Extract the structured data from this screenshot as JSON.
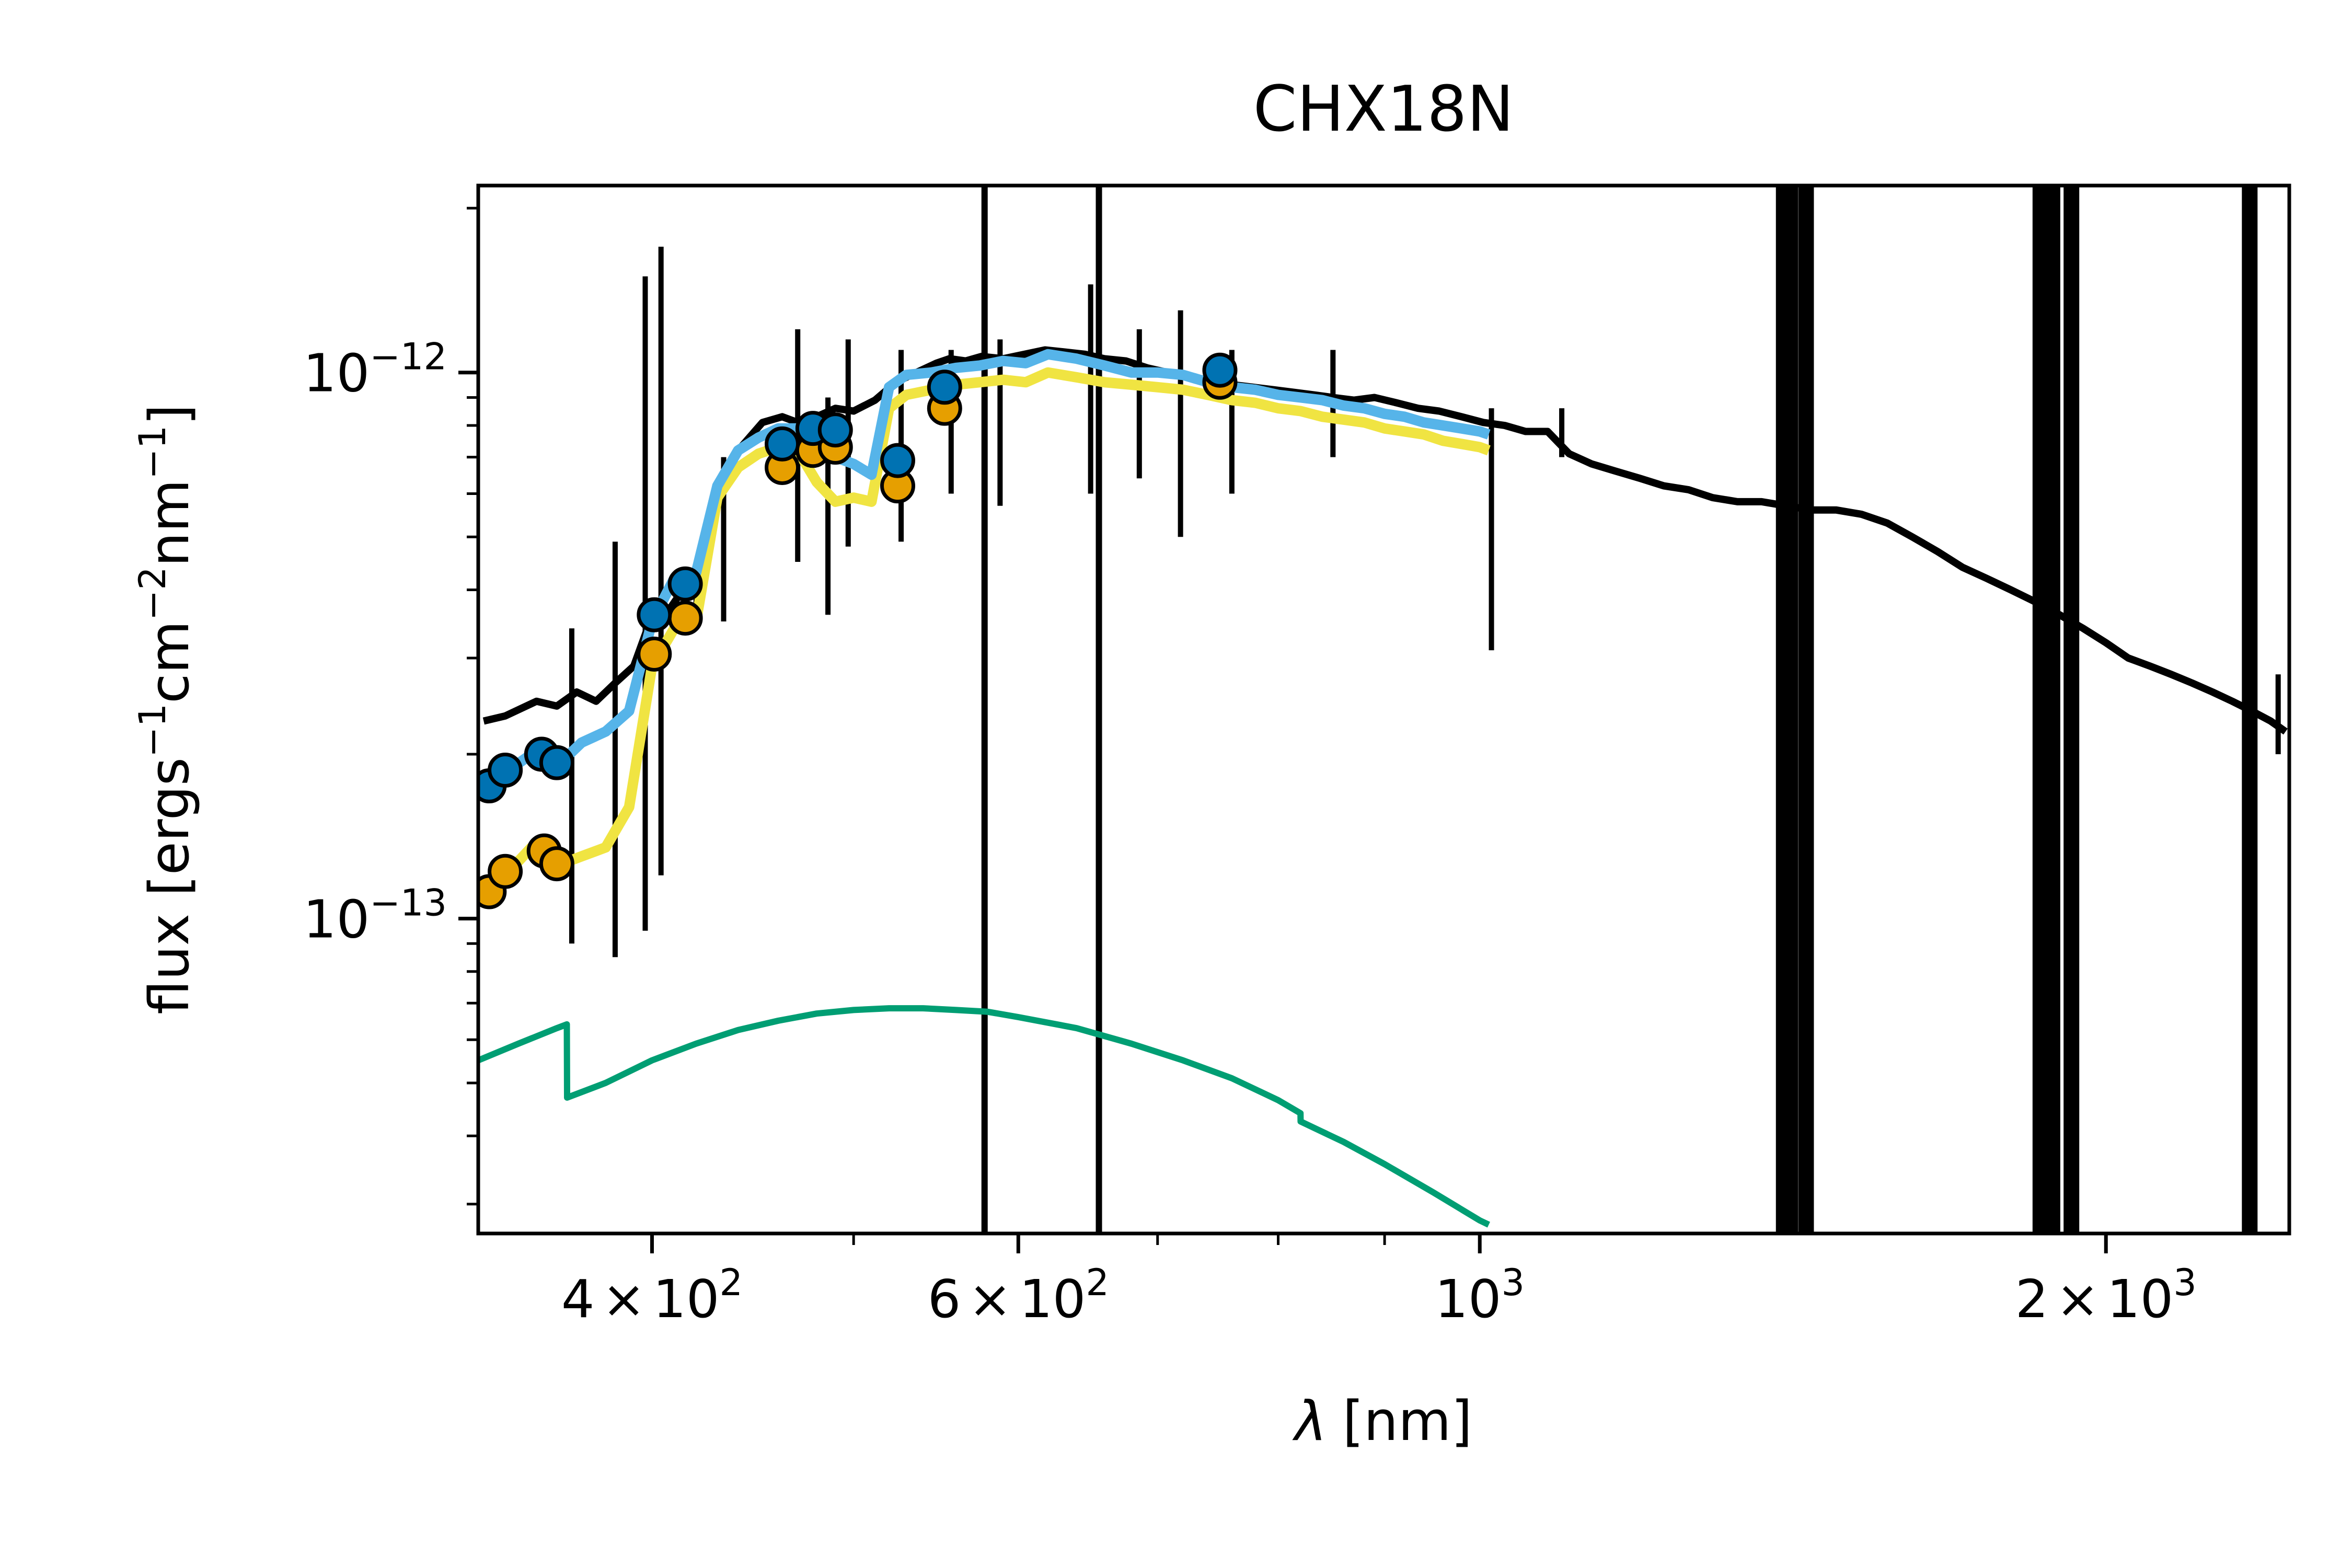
{
  "chart_data": {
    "type": "line",
    "title": "CHX18N",
    "xlabel": {
      "symbol": "λ",
      "unit": "[nm]"
    },
    "ylabel": {
      "prefix": "flux [ergs",
      "exp1": "−1",
      "mid1": "cm",
      "exp2": "−2",
      "mid2": "nm",
      "exp3": "−1",
      "suffix": "]"
    },
    "xscale": "log",
    "yscale": "log",
    "xlim": [
      330,
      2450
    ],
    "ylim": [
      2.65e-14,
      2.2e-12
    ],
    "x_ticks": [
      {
        "value": 400,
        "mantissa": "4",
        "times": "×",
        "base": "10",
        "exp": "2"
      },
      {
        "value": 600,
        "mantissa": "6",
        "times": "×",
        "base": "10",
        "exp": "2"
      },
      {
        "value": 1000,
        "mantissa": "",
        "times": "",
        "base": "10",
        "exp": "3"
      },
      {
        "value": 2000,
        "mantissa": "2",
        "times": "×",
        "base": "10",
        "exp": "3"
      }
    ],
    "y_ticks": [
      {
        "value": 1e-12,
        "base": "10",
        "exp": "−12"
      },
      {
        "value": 1e-13,
        "base": "10",
        "exp": "−13"
      }
    ],
    "colors": {
      "observed": "#000000",
      "model_blue": "#56b4e9",
      "model_yellow": "#f0e442",
      "blackbody": "#009e73",
      "phot_blue": "#0072b2",
      "phot_orange": "#e69f00"
    },
    "series": [
      {
        "id": "observed-spectrum",
        "x": [
          332,
          340,
          352,
          360,
          368,
          376,
          384,
          392,
          398,
          404,
          412,
          420,
          430,
          440,
          452,
          462,
          470,
          480,
          490,
          500,
          512,
          524,
          536,
          548,
          556,
          566,
          576,
          590,
          604,
          618,
          632,
          646,
          660,
          676,
          692,
          708,
          724,
          742,
          760,
          778,
          796,
          814,
          832,
          850,
          870,
          890,
          912,
          934,
          956,
          980,
          1004,
          1028,
          1052,
          1078,
          1104,
          1132,
          1162,
          1194,
          1226,
          1260,
          1294,
          1330,
          1366,
          1404,
          1444,
          1484,
          1526,
          1570,
          1614,
          1660,
          1706,
          1752,
          1800,
          1850,
          1900,
          1950,
          2000,
          2050,
          2100,
          2150,
          2200,
          2250,
          2300,
          2350,
          2400,
          2440
        ],
        "y": [
          2.3e-13,
          2.35e-13,
          2.5e-13,
          2.45e-13,
          2.6e-13,
          2.5e-13,
          2.7e-13,
          2.9e-13,
          3.4e-13,
          3.5e-13,
          3.9e-13,
          4.2e-13,
          6e-13,
          7.2e-13,
          8.1e-13,
          8.3e-13,
          8.1e-13,
          8.3e-13,
          8.6e-13,
          8.5e-13,
          8.9e-13,
          9.6e-13,
          1e-12,
          1.04e-12,
          1.06e-12,
          1.05e-12,
          1.07e-12,
          1.06e-12,
          1.08e-12,
          1.1e-12,
          1.09e-12,
          1.08e-12,
          1.06e-12,
          1.05e-12,
          1.02e-12,
          1e-12,
          9.8e-13,
          9.7e-13,
          9.5e-13,
          9.4e-13,
          9.3e-13,
          9.2e-13,
          9.1e-13,
          9e-13,
          8.9e-13,
          9e-13,
          8.8e-13,
          8.6e-13,
          8.5e-13,
          8.3e-13,
          8.1e-13,
          8e-13,
          7.8e-13,
          7.8e-13,
          7.1e-13,
          6.8e-13,
          6.6e-13,
          6.4e-13,
          6.2e-13,
          6.1e-13,
          5.9e-13,
          5.8e-13,
          5.8e-13,
          5.7e-13,
          5.6e-13,
          5.6e-13,
          5.5e-13,
          5.3e-13,
          5e-13,
          4.7e-13,
          4.4e-13,
          4.2e-13,
          4e-13,
          3.8e-13,
          3.6e-13,
          3.4e-13,
          3.2e-13,
          3e-13,
          2.9e-13,
          2.8e-13,
          2.7e-13,
          2.6e-13,
          2.5e-13,
          2.4e-13,
          2.3e-13,
          2.2e-13
        ]
      },
      {
        "id": "model-spectrum-blue",
        "x": [
          332,
          340,
          350,
          360,
          370,
          380,
          390,
          400,
          410,
          420,
          430,
          440,
          450,
          460,
          470,
          480,
          490,
          500,
          510,
          520,
          530,
          545,
          560,
          575,
          590,
          605,
          620,
          640,
          660,
          680,
          700,
          720,
          740,
          760,
          780,
          800,
          820,
          840,
          860,
          880,
          900,
          920,
          940,
          960,
          980,
          1000,
          1010
        ],
        "y": [
          1.75e-13,
          1.85e-13,
          2e-13,
          1.9e-13,
          2.1e-13,
          2.2e-13,
          2.4e-13,
          3.5e-13,
          4.2e-13,
          4.3e-13,
          6.2e-13,
          7.2e-13,
          7.6e-13,
          7.9e-13,
          7.9e-13,
          7.2e-13,
          7e-13,
          6.8e-13,
          6.5e-13,
          9.4e-13,
          9.9e-13,
          1e-12,
          1.02e-12,
          1.03e-12,
          1.05e-12,
          1.04e-12,
          1.08e-12,
          1.06e-12,
          1.03e-12,
          1e-12,
          1e-12,
          9.9e-13,
          9.6e-13,
          9.4e-13,
          9.3e-13,
          9.1e-13,
          9e-13,
          8.9e-13,
          8.7e-13,
          8.6e-13,
          8.4e-13,
          8.3e-13,
          8.1e-13,
          8e-13,
          7.9e-13,
          7.8e-13,
          7.7e-13
        ]
      },
      {
        "id": "model-spectrum-yellow",
        "x": [
          332,
          340,
          350,
          360,
          370,
          380,
          390,
          400,
          410,
          420,
          430,
          440,
          450,
          460,
          470,
          480,
          490,
          500,
          510,
          520,
          530,
          545,
          560,
          575,
          590,
          605,
          620,
          640,
          660,
          680,
          700,
          720,
          740,
          760,
          780,
          800,
          820,
          840,
          860,
          880,
          900,
          920,
          940,
          960,
          980,
          1000,
          1010
        ],
        "y": [
          1.1e-13,
          1.2e-13,
          1.35e-13,
          1.25e-13,
          1.3e-13,
          1.35e-13,
          1.6e-13,
          2.9e-13,
          3.4e-13,
          3.5e-13,
          5.9e-13,
          6.7e-13,
          7.1e-13,
          7.3e-13,
          7.2e-13,
          6.3e-13,
          5.8e-13,
          5.9e-13,
          5.8e-13,
          8.6e-13,
          9.1e-13,
          9.3e-13,
          9.5e-13,
          9.6e-13,
          9.7e-13,
          9.6e-13,
          1e-12,
          9.8e-13,
          9.6e-13,
          9.5e-13,
          9.4e-13,
          9.3e-13,
          9.1e-13,
          8.9e-13,
          8.8e-13,
          8.6e-13,
          8.5e-13,
          8.3e-13,
          8.2e-13,
          8.1e-13,
          7.9e-13,
          7.8e-13,
          7.7e-13,
          7.5e-13,
          7.4e-13,
          7.3e-13,
          7.2e-13
        ]
      },
      {
        "id": "blackbody-curve",
        "x": [
          330,
          345,
          360,
          364,
          364.1,
          380,
          400,
          420,
          440,
          460,
          480,
          500,
          520,
          540,
          560,
          580,
          600,
          640,
          680,
          720,
          760,
          800,
          820,
          820.1,
          860,
          900,
          950,
          1000,
          1010
        ],
        "y": [
          5.5e-14,
          5.9e-14,
          6.3e-14,
          6.4e-14,
          4.7e-14,
          5e-14,
          5.5e-14,
          5.9e-14,
          6.25e-14,
          6.5e-14,
          6.7e-14,
          6.8e-14,
          6.85e-14,
          6.85e-14,
          6.8e-14,
          6.75e-14,
          6.6e-14,
          6.3e-14,
          5.9e-14,
          5.5e-14,
          5.1e-14,
          4.65e-14,
          4.4e-14,
          4.25e-14,
          3.9e-14,
          3.55e-14,
          3.15e-14,
          2.8e-14,
          2.75e-14
        ]
      }
    ],
    "absorption_spikes": [
      {
        "x": 366,
        "y_low": 9e-14,
        "y_high": 3.4e-13
      },
      {
        "x": 384,
        "y_low": 8.5e-14,
        "y_high": 4.9e-13
      },
      {
        "x": 397,
        "y_low": 9.5e-14,
        "y_high": 1.5e-12
      },
      {
        "x": 404,
        "y_low": 1.2e-13,
        "y_high": 1.7e-12
      },
      {
        "x": 420,
        "y_low": 3.5e-13,
        "y_high": 4.2e-13
      },
      {
        "x": 433,
        "y_low": 3.5e-13,
        "y_high": 7e-13
      },
      {
        "x": 470,
        "y_low": 4.5e-13,
        "y_high": 1.2e-12
      },
      {
        "x": 486,
        "y_low": 3.6e-13,
        "y_high": 9e-13
      },
      {
        "x": 497,
        "y_low": 4.8e-13,
        "y_high": 1.15e-12
      },
      {
        "x": 527,
        "y_low": 4.9e-13,
        "y_high": 1.1e-12
      },
      {
        "x": 557,
        "y_low": 6e-13,
        "y_high": 1.1e-12
      },
      {
        "x": 588,
        "y_low": 5.7e-13,
        "y_high": 1.15e-12
      },
      {
        "x": 650,
        "y_low": 6e-13,
        "y_high": 1.45e-12
      },
      {
        "x": 686,
        "y_low": 6.4e-13,
        "y_high": 1.2e-12
      },
      {
        "x": 718,
        "y_low": 5e-13,
        "y_high": 1.3e-12
      },
      {
        "x": 760,
        "y_low": 6e-13,
        "y_high": 1.1e-12
      },
      {
        "x": 850,
        "y_low": 7e-13,
        "y_high": 1.1e-12
      },
      {
        "x": 1013,
        "y_low": 3.1e-13,
        "y_high": 8.6e-13
      },
      {
        "x": 1095,
        "y_low": 7e-13,
        "y_high": 8.6e-13
      },
      {
        "x": 1400,
        "y_low": 2.65e-14,
        "y_high": 2.2e-12
      },
      {
        "x": 1410,
        "y_low": 2.65e-14,
        "y_high": 2.2e-12
      },
      {
        "x": 1435,
        "y_low": 2.65e-14,
        "y_high": 2.2e-12
      },
      {
        "x": 1860,
        "y_low": 2.65e-14,
        "y_high": 2.2e-12
      },
      {
        "x": 1885,
        "y_low": 2.65e-14,
        "y_high": 2.2e-12
      },
      {
        "x": 1925,
        "y_low": 2.65e-14,
        "y_high": 2.2e-12
      },
      {
        "x": 2345,
        "y_low": 2.65e-14,
        "y_high": 2.2e-12
      },
      {
        "x": 2420,
        "y_low": 2e-13,
        "y_high": 2.8e-13
      }
    ],
    "vertical_lines": [
      {
        "x": 578,
        "y_low": 2.65e-14,
        "y_high": 2.2e-12
      },
      {
        "x": 656,
        "y_low": 2.65e-14,
        "y_high": 2.2e-12
      }
    ],
    "points_blue": [
      {
        "x": 334,
        "y": 1.75e-13
      },
      {
        "x": 340,
        "y": 1.87e-13
      },
      {
        "x": 354,
        "y": 2e-13
      },
      {
        "x": 360,
        "y": 1.93e-13
      },
      {
        "x": 401,
        "y": 3.6e-13
      },
      {
        "x": 415,
        "y": 4.1e-13
      },
      {
        "x": 462,
        "y": 7.4e-13
      },
      {
        "x": 478,
        "y": 7.9e-13
      },
      {
        "x": 490,
        "y": 7.85e-13
      },
      {
        "x": 525,
        "y": 6.9e-13
      },
      {
        "x": 553,
        "y": 9.4e-13
      },
      {
        "x": 750,
        "y": 1.01e-12
      }
    ],
    "points_orange": [
      {
        "x": 334,
        "y": 1.12e-13
      },
      {
        "x": 340,
        "y": 1.22e-13
      },
      {
        "x": 355,
        "y": 1.33e-13
      },
      {
        "x": 360,
        "y": 1.26e-13
      },
      {
        "x": 401,
        "y": 3.05e-13
      },
      {
        "x": 415,
        "y": 3.55e-13
      },
      {
        "x": 462,
        "y": 6.7e-13
      },
      {
        "x": 478,
        "y": 7.2e-13
      },
      {
        "x": 490,
        "y": 7.3e-13
      },
      {
        "x": 525,
        "y": 6.2e-13
      },
      {
        "x": 553,
        "y": 8.6e-13
      },
      {
        "x": 750,
        "y": 9.6e-13
      }
    ]
  }
}
